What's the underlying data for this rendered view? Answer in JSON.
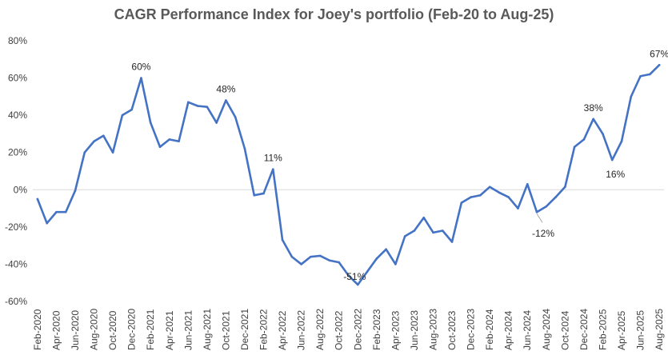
{
  "chart_data": {
    "type": "line",
    "title": "CAGR Performance Index for Joey's portfolio (Feb-20 to Aug-25)",
    "xlabel": "",
    "ylabel": "",
    "ylim": [
      -60,
      80
    ],
    "y_ticks": [
      80,
      60,
      40,
      20,
      0,
      -20,
      -40,
      -60
    ],
    "y_tick_labels": [
      "80%",
      "60%",
      "40%",
      "20%",
      "0%",
      "-20%",
      "-40%",
      "-60%"
    ],
    "categories": [
      "Feb-2020",
      "Mar-2020",
      "Apr-2020",
      "May-2020",
      "Jun-2020",
      "Jul-2020",
      "Aug-2020",
      "Sep-2020",
      "Oct-2020",
      "Nov-2020",
      "Dec-2020",
      "Jan-2021",
      "Feb-2021",
      "Mar-2021",
      "Apr-2021",
      "May-2021",
      "Jun-2021",
      "Jul-2021",
      "Aug-2021",
      "Sep-2021",
      "Oct-2021",
      "Nov-2021",
      "Dec-2021",
      "Jan-2022",
      "Feb-2022",
      "Mar-2022",
      "Apr-2022",
      "May-2022",
      "Jun-2022",
      "Jul-2022",
      "Aug-2022",
      "Sep-2022",
      "Oct-2022",
      "Nov-2022",
      "Dec-2022",
      "Jan-2023",
      "Feb-2023",
      "Mar-2023",
      "Apr-2023",
      "May-2023",
      "Jun-2023",
      "Jul-2023",
      "Aug-2023",
      "Sep-2023",
      "Oct-2023",
      "Nov-2023",
      "Dec-2023",
      "Jan-2024",
      "Feb-2024",
      "Mar-2024",
      "Apr-2024",
      "May-2024",
      "Jun-2024",
      "Jul-2024",
      "Aug-2024",
      "Sep-2024",
      "Oct-2024",
      "Nov-2024",
      "Dec-2024",
      "Jan-2025",
      "Feb-2025",
      "Mar-2025",
      "Apr-2025",
      "May-2025",
      "Jun-2025",
      "Jul-2025",
      "Aug-2025"
    ],
    "label_every": 2,
    "series": [
      {
        "name": "CAGR Performance Index",
        "color": "#4472C4",
        "values": [
          -5,
          -18,
          -12,
          -12,
          -0.5,
          20,
          26,
          29,
          20,
          40,
          43,
          60,
          36,
          23,
          27,
          26,
          47,
          45,
          44.5,
          36,
          48,
          39,
          22,
          -3,
          -2,
          11,
          -27,
          -36,
          -40,
          -36,
          -35.5,
          -38,
          -39,
          -46,
          -51,
          -44,
          -37,
          -32,
          -40,
          -25,
          -22,
          -15,
          -23,
          -22,
          -28,
          -7,
          -4,
          -3,
          1.5,
          -1.5,
          -4,
          -10,
          3,
          -12,
          -9,
          -4,
          1.5,
          23,
          27,
          38,
          30,
          16,
          26,
          50,
          61,
          62,
          67
        ]
      }
    ],
    "annotations": [
      {
        "index": 11,
        "text": "60%",
        "pos": "above"
      },
      {
        "index": 20,
        "text": "48%",
        "pos": "above"
      },
      {
        "index": 25,
        "text": "11%",
        "pos": "above"
      },
      {
        "index": 34,
        "text": "-51%",
        "pos": "left"
      },
      {
        "index": 53,
        "text": "-12%",
        "pos": "below-leader"
      },
      {
        "index": 59,
        "text": "38%",
        "pos": "above"
      },
      {
        "index": 61,
        "text": "16%",
        "pos": "below"
      },
      {
        "index": 66,
        "text": "67%",
        "pos": "above"
      }
    ]
  }
}
